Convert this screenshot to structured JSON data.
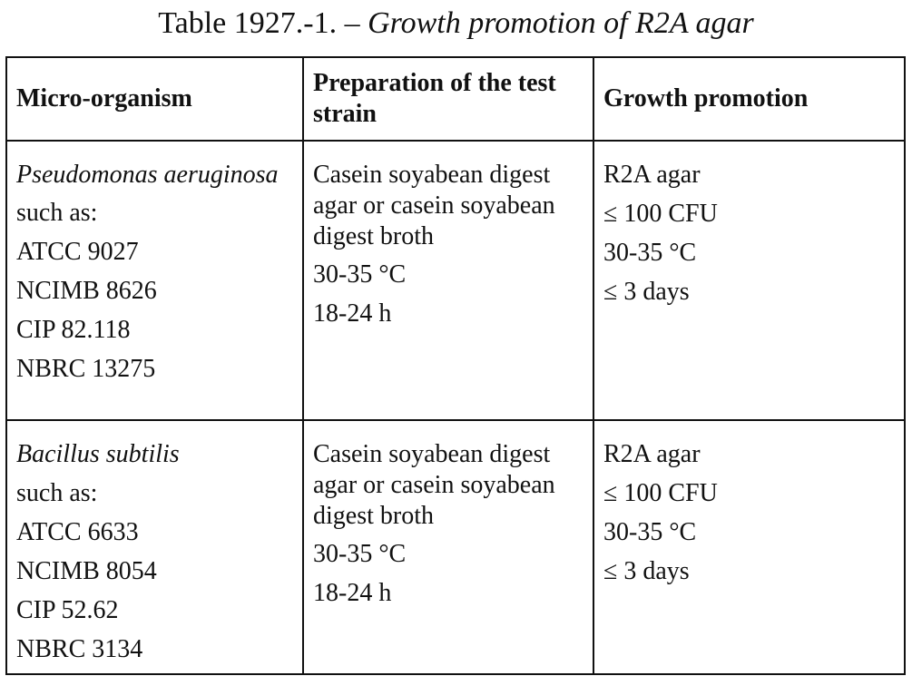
{
  "caption": {
    "prefix": "Table 1927.-1. – ",
    "title": "Growth promotion of R2A agar"
  },
  "table": {
    "headers": [
      "Micro-organism",
      "Preparation of the test strain",
      "Growth promotion"
    ],
    "rows": [
      {
        "organism": {
          "name": "Pseudomonas aeruginosa",
          "such_as": "such as:",
          "strains": [
            "ATCC 9027",
            "NCIMB 8626",
            "CIP 82.118",
            "NBRC 13275"
          ]
        },
        "preparation": {
          "medium": "Casein soyabean digest agar or casein soyabean digest broth",
          "temperature": "30-35 °C",
          "time": "18-24 h"
        },
        "growth": {
          "medium": "R2A agar",
          "inoculum": "≤ 100 CFU",
          "temperature": "30-35 °C",
          "time": "≤ 3 days"
        }
      },
      {
        "organism": {
          "name": "Bacillus subtilis",
          "such_as": "such as:",
          "strains": [
            "ATCC 6633",
            "NCIMB 8054",
            "CIP 52.62",
            "NBRC 3134"
          ]
        },
        "preparation": {
          "medium": "Casein soyabean digest agar or casein soyabean digest broth",
          "temperature": "30-35 °C",
          "time": "18-24 h"
        },
        "growth": {
          "medium": "R2A agar",
          "inoculum": "≤ 100 CFU",
          "temperature": "30-35 °C",
          "time": "≤ 3 days"
        }
      }
    ]
  }
}
